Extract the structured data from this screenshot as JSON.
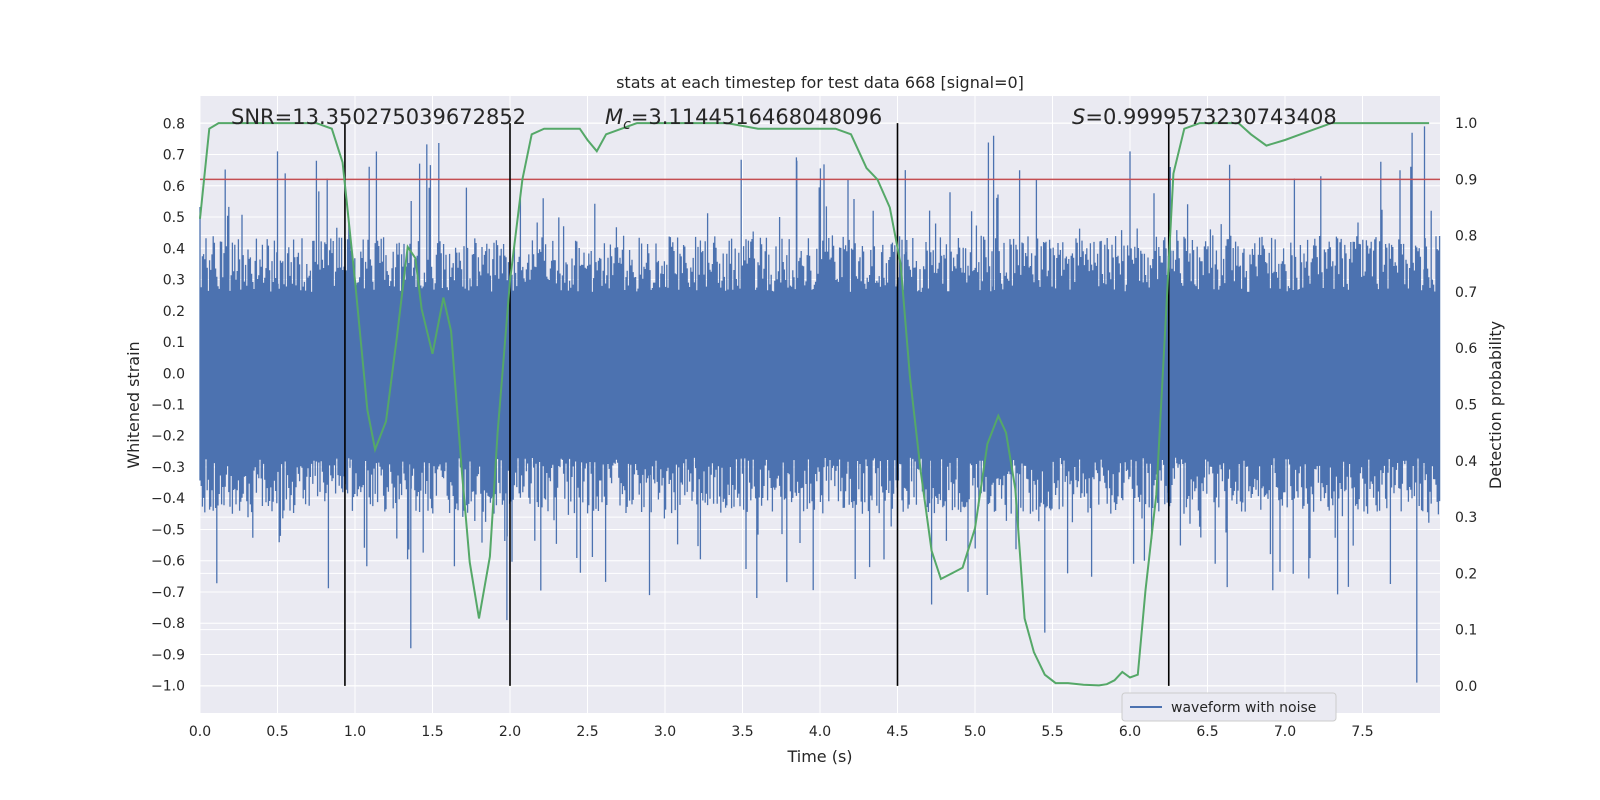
{
  "chart_data": {
    "type": "line",
    "title": "stats at each timestep for test data 668 [signal=0]",
    "xlabel": "Time (s)",
    "ylabel": "Whitened strain",
    "y2label": "Detection probability",
    "xlim": [
      0,
      8
    ],
    "ylim": [
      -1.0873,
      0.8873
    ],
    "y2lim": [
      -0.0481,
      1.0481
    ],
    "xticks": [
      "0.0",
      "0.5",
      "1.0",
      "1.5",
      "2.0",
      "2.5",
      "3.0",
      "3.5",
      "4.0",
      "4.5",
      "5.0",
      "5.5",
      "6.0",
      "6.5",
      "7.0",
      "7.5"
    ],
    "yticks": [
      "0.8",
      "0.7",
      "0.6",
      "0.5",
      "0.4",
      "0.3",
      "0.2",
      "0.1",
      "0.0",
      "−0.1",
      "−0.2",
      "−0.3",
      "−0.4",
      "−0.5",
      "−0.6",
      "−0.7",
      "−0.8",
      "−0.9",
      "−1.0"
    ],
    "y2ticks": [
      "1.0",
      "0.9",
      "0.8",
      "0.7",
      "0.6",
      "0.5",
      "0.4",
      "0.3",
      "0.2",
      "0.1",
      "0.0"
    ],
    "grid": true,
    "legend_position": "lower-right",
    "annotations": {
      "snr": "SNR=13.350275039672852",
      "mc_symbol": "M",
      "mc_subscript": "c",
      "mc_value": "=3.1144516468048096",
      "s_symbol": "S",
      "s_value": "=0.9999573230743408"
    },
    "series": [
      {
        "name": "waveform with noise",
        "kind": "noise",
        "color": "#4c72b0",
        "core_range": [
          -0.27,
          0.26
        ],
        "peaks": [
          [
            0.5,
            0.71
          ],
          [
            1.36,
            -0.88
          ],
          [
            1.98,
            -0.79
          ],
          [
            2.9,
            -0.71
          ],
          [
            3.85,
            0.68
          ],
          [
            4.55,
            0.65
          ],
          [
            4.72,
            -0.74
          ],
          [
            5.12,
            0.76
          ],
          [
            5.45,
            -0.83
          ],
          [
            6.0,
            0.71
          ],
          [
            6.26,
            0.66
          ],
          [
            7.85,
            -0.99
          ],
          [
            7.9,
            0.79
          ],
          [
            7.82,
            0.77
          ]
        ]
      },
      {
        "name": "",
        "kind": "probability",
        "color": "#55a868",
        "x": [
          0.0,
          0.06,
          0.12,
          0.2,
          0.4,
          0.6,
          0.75,
          0.85,
          0.92,
          1.0,
          1.08,
          1.13,
          1.2,
          1.27,
          1.34,
          1.39,
          1.43,
          1.5,
          1.57,
          1.62,
          1.69,
          1.74,
          1.8,
          1.87,
          1.92,
          2.0,
          2.08,
          2.14,
          2.22,
          2.3,
          2.38,
          2.45,
          2.5,
          2.56,
          2.62,
          2.72,
          2.82,
          3.0,
          3.2,
          3.4,
          3.6,
          3.8,
          3.95,
          4.1,
          4.2,
          4.3,
          4.37,
          4.45,
          4.52,
          4.58,
          4.65,
          4.72,
          4.78,
          4.85,
          4.92,
          5.0,
          5.08,
          5.15,
          5.2,
          5.26,
          5.32,
          5.38,
          5.45,
          5.52,
          5.6,
          5.7,
          5.8,
          5.85,
          5.9,
          5.95,
          6.0,
          6.05,
          6.1,
          6.17,
          6.24,
          6.28,
          6.35,
          6.45,
          6.55,
          6.7,
          6.78,
          6.88,
          7.0,
          7.1,
          7.2,
          7.3,
          7.4,
          7.6,
          7.8,
          7.93
        ],
        "values": [
          0.83,
          0.99,
          1.0,
          1.0,
          1.0,
          1.0,
          1.0,
          0.99,
          0.93,
          0.72,
          0.49,
          0.42,
          0.47,
          0.62,
          0.78,
          0.76,
          0.67,
          0.59,
          0.69,
          0.63,
          0.38,
          0.22,
          0.12,
          0.23,
          0.45,
          0.72,
          0.9,
          0.98,
          0.99,
          0.99,
          0.99,
          0.99,
          0.97,
          0.95,
          0.98,
          0.99,
          1.0,
          1.0,
          1.0,
          1.0,
          0.99,
          0.99,
          0.99,
          0.99,
          0.98,
          0.92,
          0.9,
          0.85,
          0.75,
          0.55,
          0.38,
          0.24,
          0.19,
          0.2,
          0.21,
          0.28,
          0.43,
          0.48,
          0.45,
          0.35,
          0.12,
          0.06,
          0.02,
          0.005,
          0.005,
          0.002,
          0.001,
          0.003,
          0.01,
          0.025,
          0.015,
          0.02,
          0.17,
          0.34,
          0.7,
          0.91,
          0.99,
          1.0,
          1.0,
          1.0,
          0.98,
          0.96,
          0.97,
          0.98,
          0.99,
          1.0,
          1.0,
          1.0,
          1.0,
          1.0
        ]
      }
    ],
    "threshold": {
      "value": 0.9,
      "color": "#c44e52"
    },
    "vertical_lines": [
      0.935,
      2.0,
      4.5,
      6.25
    ]
  }
}
